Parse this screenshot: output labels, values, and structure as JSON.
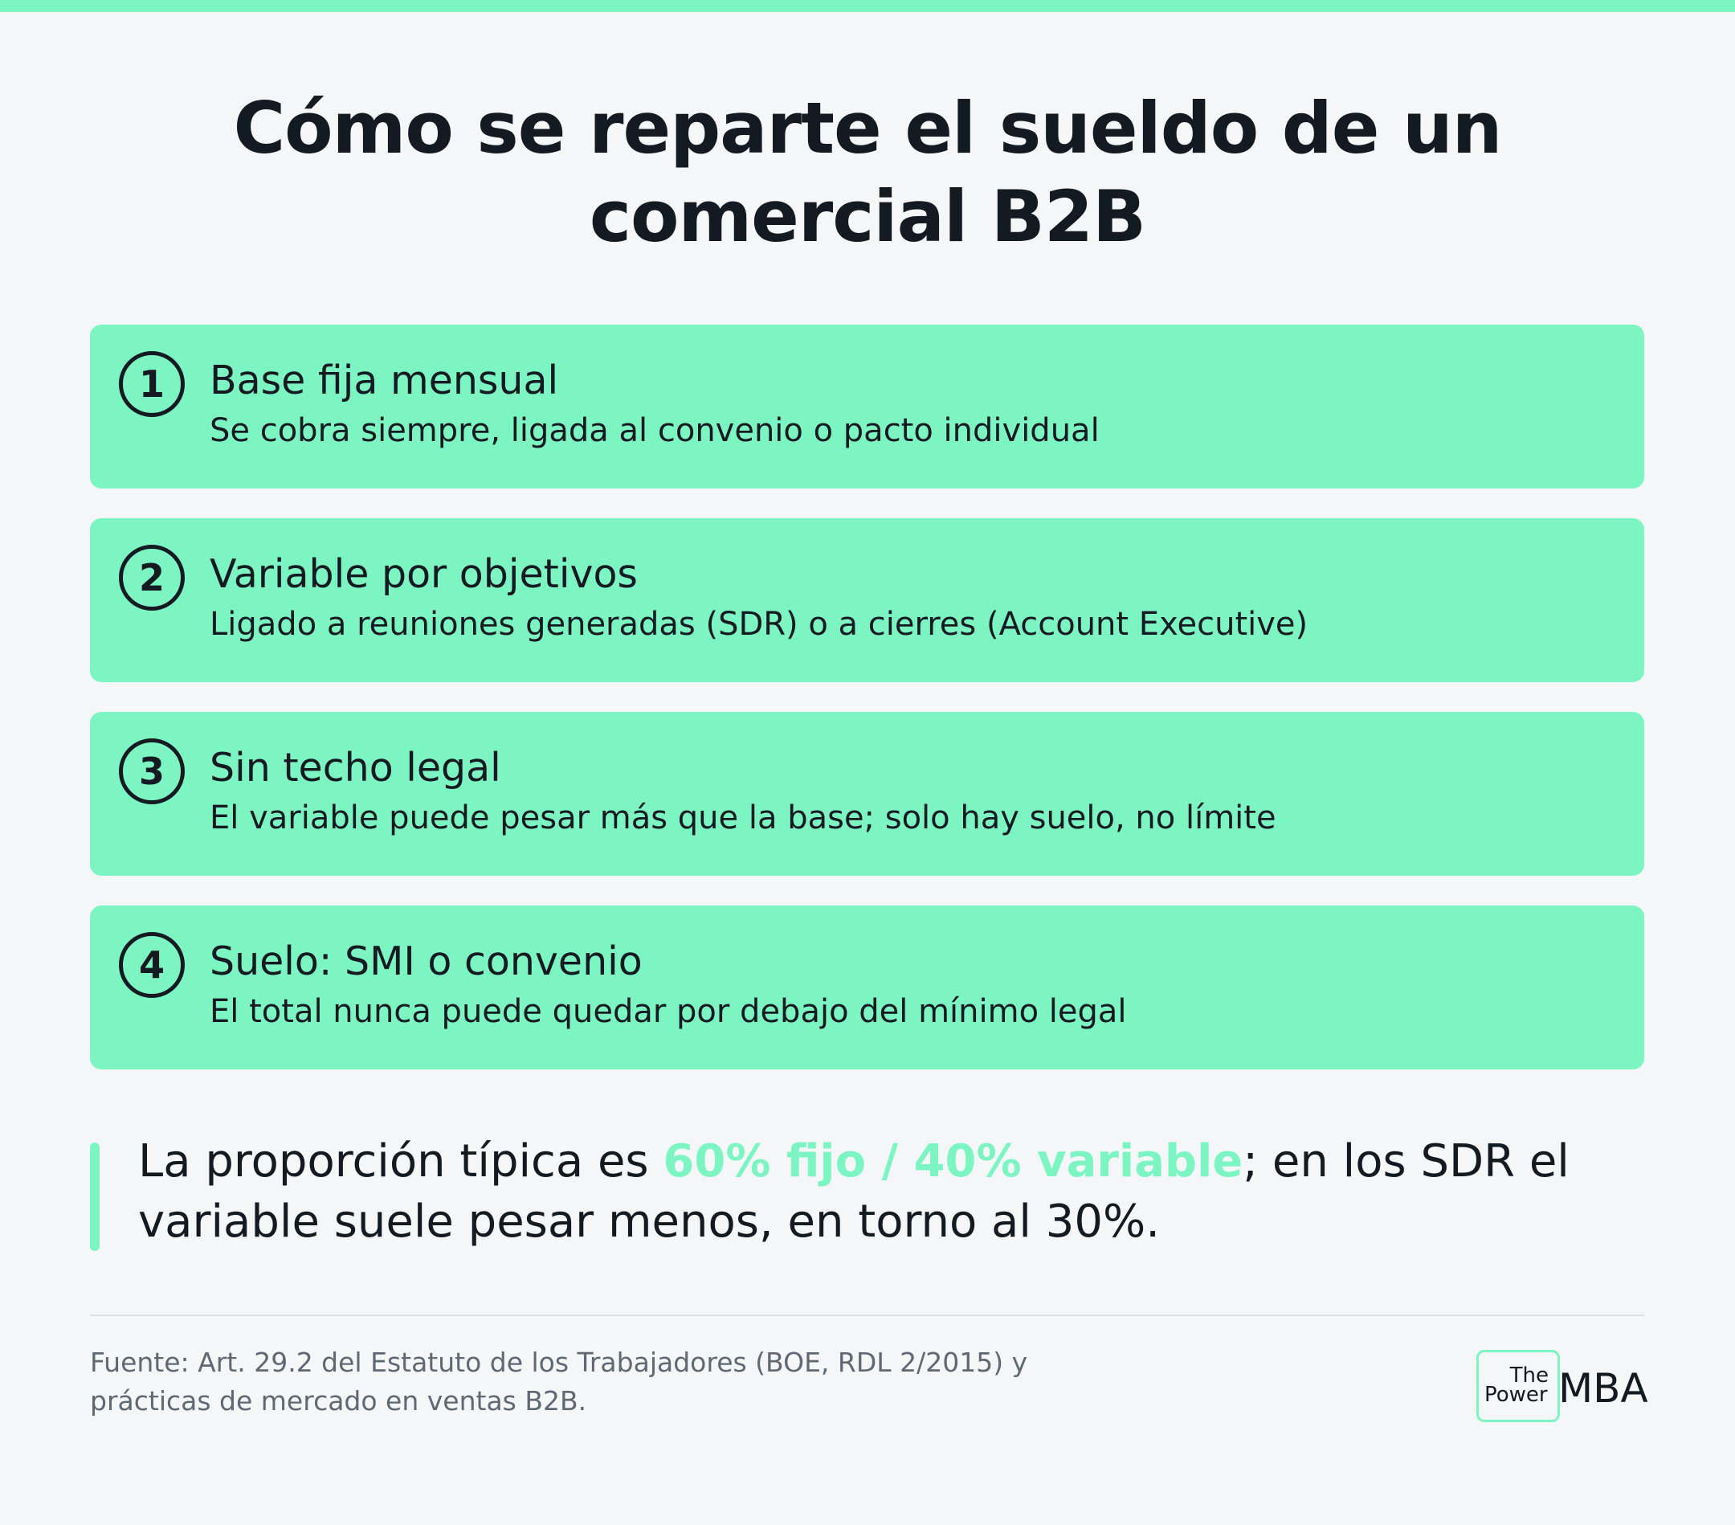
{
  "colors": {
    "accent": "#7df5c2",
    "text": "#141a22",
    "muted": "#5f6874",
    "background": "#f4f6f8"
  },
  "title": {
    "line1": "Cómo se reparte el sueldo de un",
    "line2": "comercial B2B"
  },
  "items": [
    {
      "number": "1",
      "title": "Base fija mensual",
      "description": "Se cobra siempre, ligada al convenio o pacto individual"
    },
    {
      "number": "2",
      "title": "Variable por objetivos",
      "description": "Ligado a reuniones generadas (SDR) o a cierres (Account Executive)"
    },
    {
      "number": "3",
      "title": "Sin techo legal",
      "description": "El variable puede pesar más que la base; solo hay suelo, no límite"
    },
    {
      "number": "4",
      "title": "Suelo: SMI o convenio",
      "description": "El total nunca puede quedar por debajo del mínimo legal"
    }
  ],
  "highlight": {
    "prefix": "La proporción típica es ",
    "emphasis": "60% fijo / 40% variable",
    "suffix": "; en los SDR el variable suele pesar menos, en torno al 30%."
  },
  "source": {
    "line1": "Fuente: Art. 29.2 del Estatuto de los Trabajadores (BOE, RDL 2/2015) y",
    "line2": "prácticas de mercado en ventas B2B."
  },
  "logo": {
    "the": "The",
    "power": "Power",
    "mba": "MBA"
  }
}
